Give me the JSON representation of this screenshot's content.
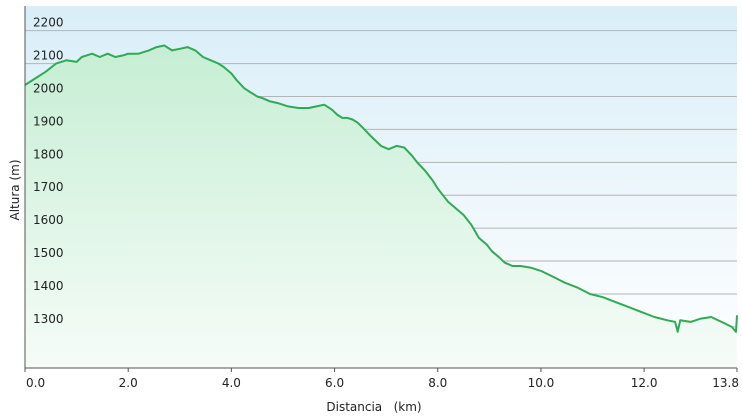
{
  "chart_data": {
    "type": "area",
    "title": "",
    "xlabel": "Distancia   (km)",
    "ylabel": "Altura (m)",
    "xlim": [
      0,
      13.8
    ],
    "ylim": [
      1175,
      2275
    ],
    "grid": true,
    "x_ticks": [
      "0.0",
      "2.0",
      "4.0",
      "6.0",
      "8.0",
      "10.0",
      "12.0",
      "13.8"
    ],
    "x_tick_values": [
      0,
      2,
      4,
      6,
      8,
      10,
      12,
      13.8
    ],
    "y_ticks": [
      "1300",
      "1400",
      "1500",
      "1600",
      "1700",
      "1800",
      "1900",
      "2000",
      "2100",
      "2200"
    ],
    "y_tick_values": [
      1300,
      1400,
      1500,
      1600,
      1700,
      1800,
      1900,
      2000,
      2100,
      2200
    ],
    "colors": {
      "line": "#2faa55",
      "fill_top": "#c6eed4",
      "fill_bottom": "#f6fcf8",
      "plot_bg_top": "#d9eef8",
      "plot_bg_bottom": "#ffffff",
      "grid": "#b4b4b4",
      "axis": "#555555"
    },
    "series": [
      {
        "x": [
          0.0,
          0.2,
          0.4,
          0.6,
          0.8,
          1.0,
          1.1,
          1.3,
          1.45,
          1.6,
          1.75,
          1.9,
          2.0,
          2.2,
          2.3,
          2.4,
          2.55,
          2.7,
          2.85,
          3.0,
          3.15,
          3.3,
          3.45,
          3.6,
          3.75,
          3.85,
          4.0,
          4.1,
          4.25,
          4.35,
          4.5,
          4.6,
          4.75,
          4.9,
          5.1,
          5.3,
          5.5,
          5.65,
          5.8,
          5.95,
          6.05,
          6.15,
          6.25,
          6.35,
          6.45,
          6.55,
          6.7,
          6.8,
          6.9,
          7.05,
          7.2,
          7.35,
          7.5,
          7.6,
          7.75,
          7.9,
          8.0,
          8.1,
          8.2,
          8.35,
          8.5,
          8.65,
          8.8,
          8.95,
          9.05,
          9.2,
          9.3,
          9.45,
          9.6,
          9.8,
          10.0,
          10.2,
          10.45,
          10.7,
          10.95,
          11.2,
          11.45,
          11.7,
          11.95,
          12.2,
          12.45,
          12.6,
          12.65,
          12.7,
          12.9,
          13.1,
          13.3,
          13.5,
          13.7,
          13.78,
          13.8
        ],
        "y": [
          2035,
          2055,
          2075,
          2100,
          2110,
          2105,
          2120,
          2130,
          2120,
          2130,
          2120,
          2125,
          2130,
          2130,
          2135,
          2140,
          2150,
          2155,
          2140,
          2145,
          2150,
          2140,
          2120,
          2110,
          2100,
          2090,
          2070,
          2050,
          2025,
          2015,
          2000,
          1995,
          1985,
          1980,
          1970,
          1965,
          1965,
          1970,
          1975,
          1960,
          1945,
          1935,
          1935,
          1930,
          1920,
          1905,
          1880,
          1865,
          1850,
          1840,
          1850,
          1845,
          1820,
          1800,
          1775,
          1745,
          1720,
          1700,
          1680,
          1660,
          1640,
          1610,
          1570,
          1550,
          1530,
          1510,
          1495,
          1485,
          1485,
          1480,
          1470,
          1455,
          1435,
          1420,
          1400,
          1390,
          1375,
          1360,
          1345,
          1330,
          1320,
          1315,
          1285,
          1320,
          1315,
          1325,
          1330,
          1315,
          1300,
          1285,
          1335
        ]
      }
    ]
  }
}
